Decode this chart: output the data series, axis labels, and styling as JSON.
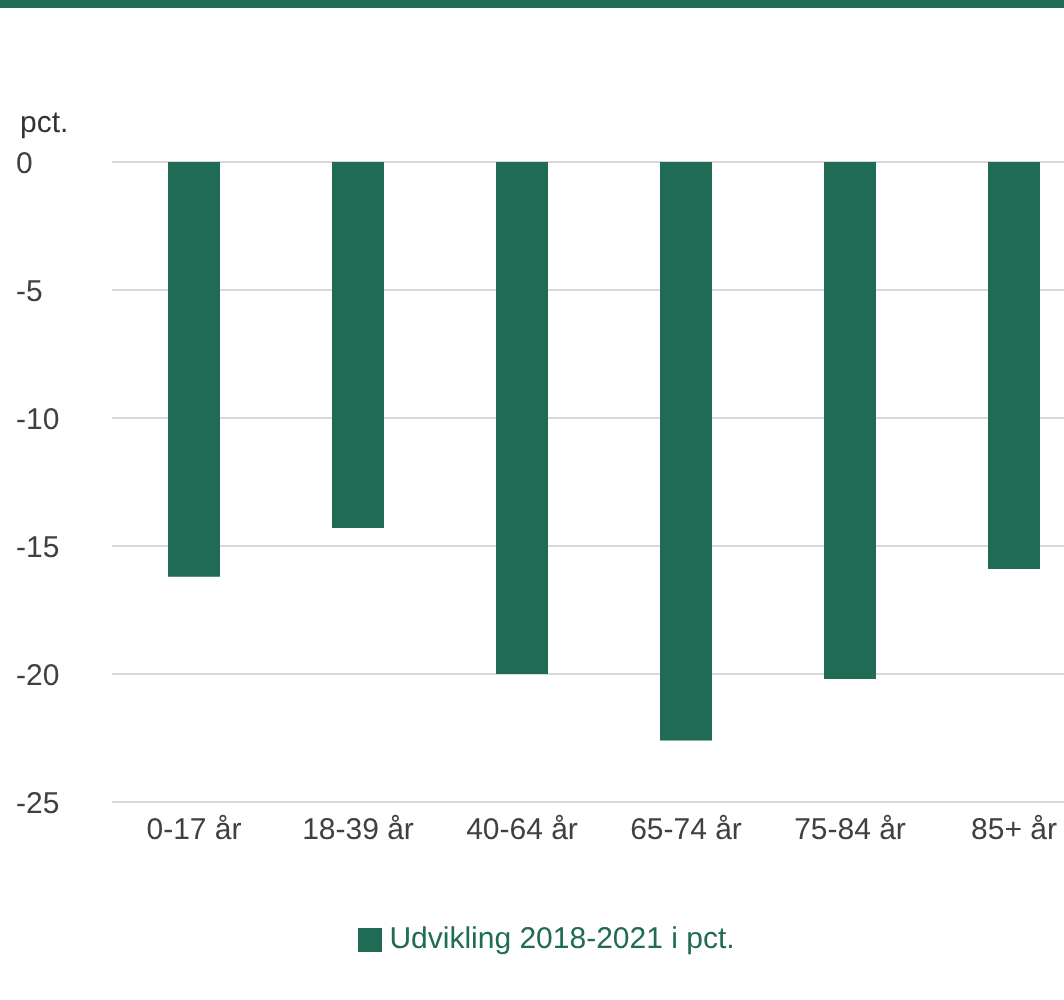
{
  "chart_data": {
    "type": "bar",
    "ylabel": "pct.",
    "categories": [
      "0-17 år",
      "18-39 år",
      "40-64 år",
      "65-74 år",
      "75-84 år",
      "85+ år"
    ],
    "series": [
      {
        "name": "Udvikling 2018-2021 i pct.",
        "color": "#1f6b55",
        "values": [
          -16.2,
          -14.3,
          -20.0,
          -22.6,
          -20.2,
          -15.9
        ]
      }
    ],
    "ylim": [
      -25,
      0
    ],
    "yticks": [
      -25,
      -20,
      -15,
      -10,
      -5,
      0
    ],
    "grid": "y",
    "legend": "bottom"
  }
}
